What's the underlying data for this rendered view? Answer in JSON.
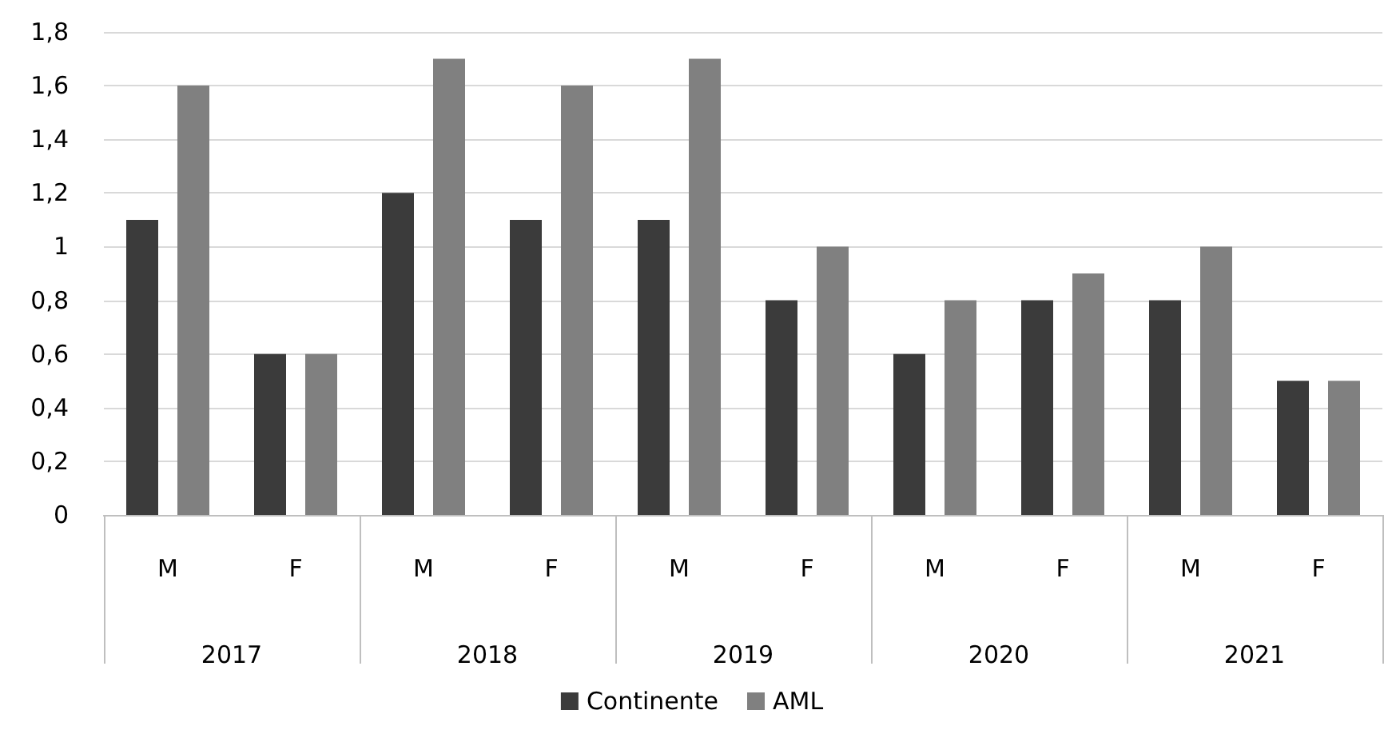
{
  "chart_data": {
    "type": "bar",
    "categories": [
      "M",
      "F",
      "M",
      "F",
      "M",
      "F",
      "M",
      "F",
      "M",
      "F"
    ],
    "annotations": [
      "2017",
      "2018",
      "2019",
      "2020",
      "2021"
    ],
    "series": [
      {
        "name": "Continente",
        "color": "#3b3b3b",
        "values": [
          1.1,
          0.6,
          1.2,
          1.1,
          1.1,
          0.8,
          0.6,
          0.8,
          0.8,
          0.5
        ]
      },
      {
        "name": "AML",
        "color": "#808080",
        "values": [
          1.6,
          0.6,
          1.7,
          1.6,
          1.7,
          1.0,
          0.8,
          0.9,
          1.0,
          0.5
        ]
      }
    ],
    "ylim": [
      0,
      1.8
    ],
    "yticks": [
      {
        "value": 0,
        "label": "0"
      },
      {
        "value": 0.2,
        "label": "0,2"
      },
      {
        "value": 0.4,
        "label": "0,4"
      },
      {
        "value": 0.6,
        "label": "0,6"
      },
      {
        "value": 0.8,
        "label": "0,8"
      },
      {
        "value": 1,
        "label": "1"
      },
      {
        "value": 1.2,
        "label": "1,2"
      },
      {
        "value": 1.4,
        "label": "1,4"
      },
      {
        "value": 1.6,
        "label": "1,6"
      },
      {
        "value": 1.8,
        "label": "1,8"
      }
    ],
    "grid": "y",
    "legend": "bottom"
  }
}
